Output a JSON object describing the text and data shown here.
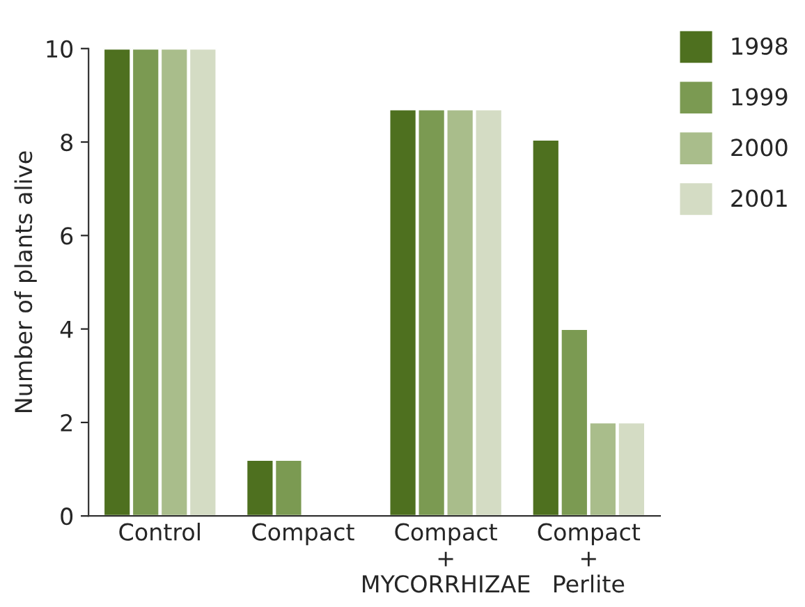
{
  "chart_data": {
    "type": "bar",
    "ylabel": "Number of plants alive",
    "categories": [
      "Control",
      "Compact",
      "Compact\n+\nMYCORRHIZAE",
      "Compact\n+\nPerlite"
    ],
    "series": [
      {
        "name": "1998",
        "color": "#4e701f",
        "values": [
          10,
          1.2,
          8.7,
          8.05
        ]
      },
      {
        "name": "1999",
        "color": "#7b9a52",
        "values": [
          10,
          1.2,
          8.7,
          4
        ]
      },
      {
        "name": "2000",
        "color": "#a9bd8b",
        "values": [
          10,
          null,
          8.7,
          2
        ]
      },
      {
        "name": "2001",
        "color": "#d4dcc4",
        "values": [
          10,
          null,
          8.7,
          2
        ]
      }
    ],
    "ylim": [
      0,
      10
    ],
    "yticks": [
      0,
      2,
      4,
      6,
      8,
      10
    ],
    "grid": false,
    "legend": "top right"
  }
}
